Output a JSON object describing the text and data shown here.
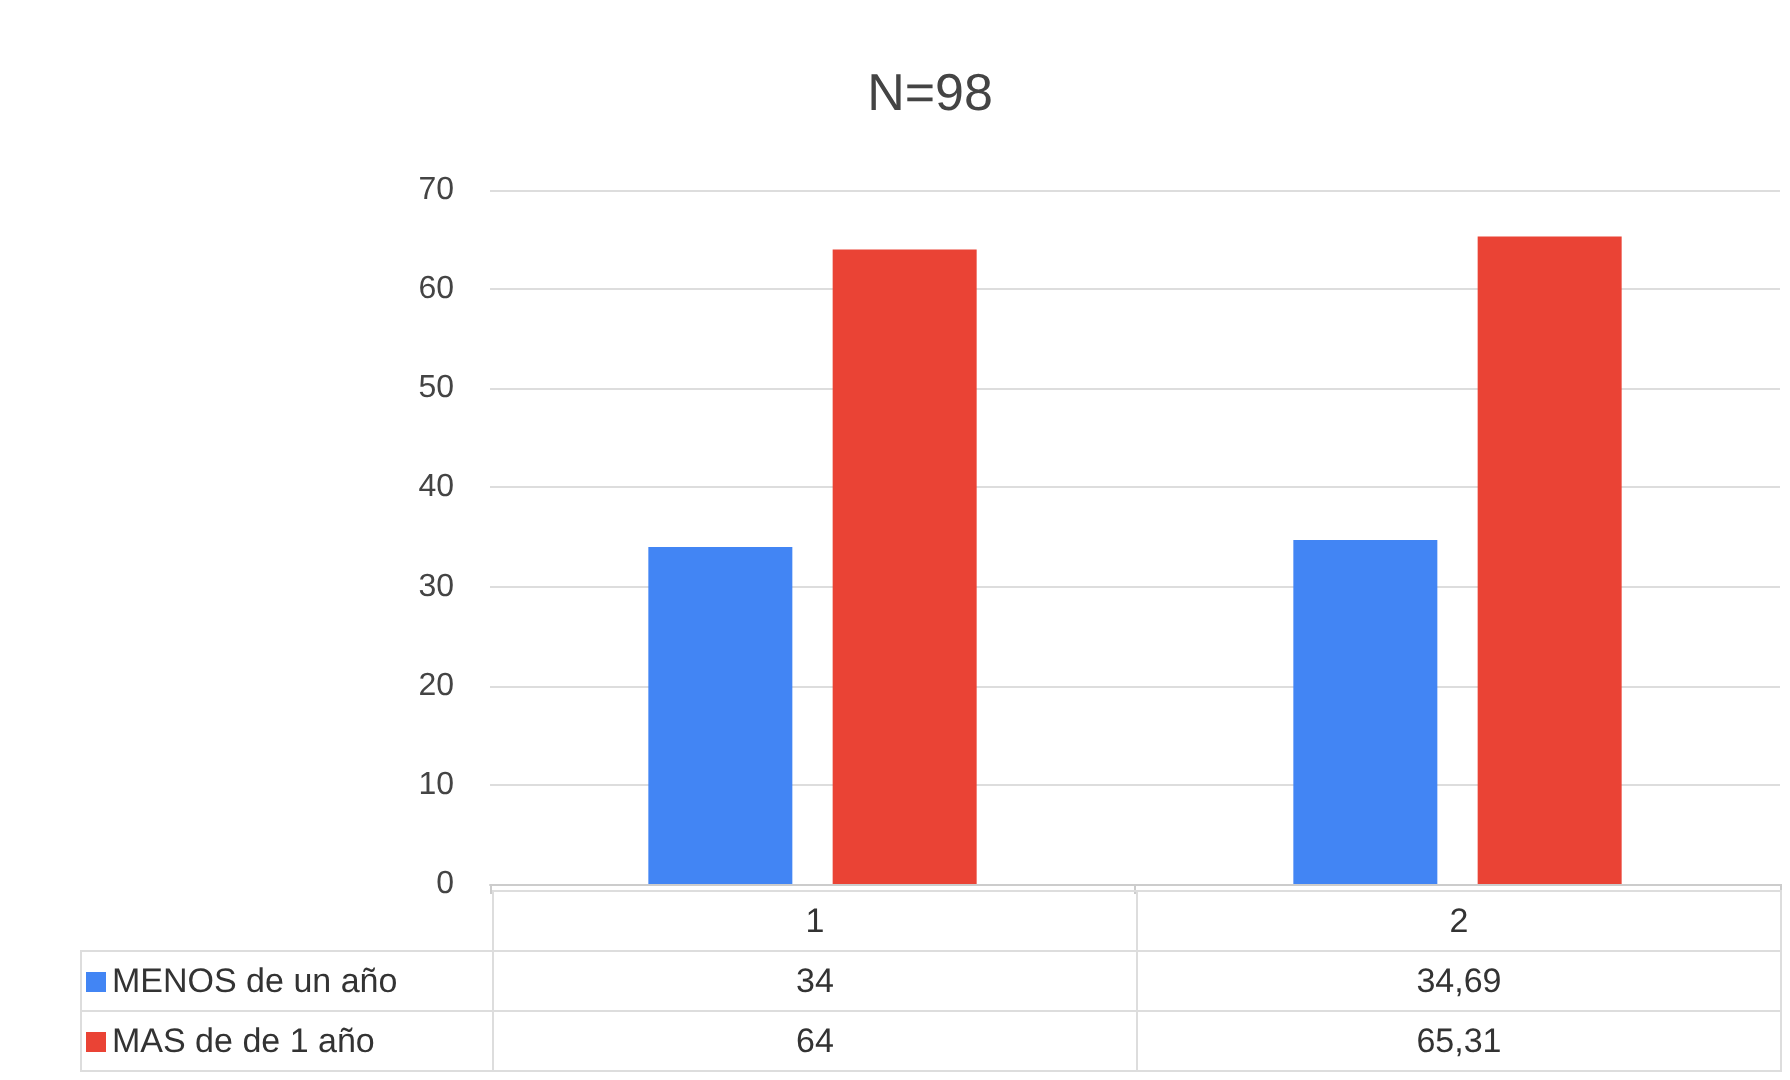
{
  "chart_data": {
    "type": "bar",
    "title": "N=98",
    "categories": [
      "1",
      "2"
    ],
    "series": [
      {
        "name": "MENOS de un año",
        "color": "#4285f4",
        "values": [
          34,
          34.69
        ],
        "value_labels": [
          "34",
          "34,69"
        ]
      },
      {
        "name": "MAS de de 1 año",
        "color": "#ea4335",
        "values": [
          64,
          65.31
        ],
        "value_labels": [
          "64",
          "65,31"
        ]
      }
    ],
    "ylim": [
      0,
      70
    ],
    "yticks": [
      0,
      10,
      20,
      30,
      40,
      50,
      60,
      70
    ],
    "grid": "y",
    "legend": "bottom"
  }
}
